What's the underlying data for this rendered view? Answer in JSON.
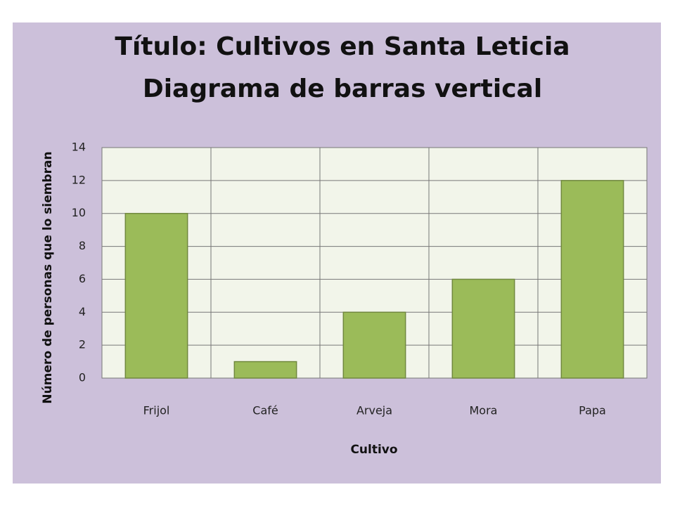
{
  "chart_data": {
    "type": "bar",
    "title": "Título: Cultivos en Santa Leticia",
    "subtitle": "Diagrama de barras vertical",
    "x_label": "Cultivo",
    "y_label": "Número de personas que lo siembran",
    "categories": [
      "Frijol",
      "Café",
      "Arveja",
      "Mora",
      "Papa"
    ],
    "values": [
      10,
      1,
      4,
      6,
      12
    ],
    "color": "#9bbb59",
    "ylim": [
      0,
      14
    ],
    "yticks": [
      0,
      2,
      4,
      6,
      8,
      10,
      12,
      14
    ],
    "grid": true
  }
}
